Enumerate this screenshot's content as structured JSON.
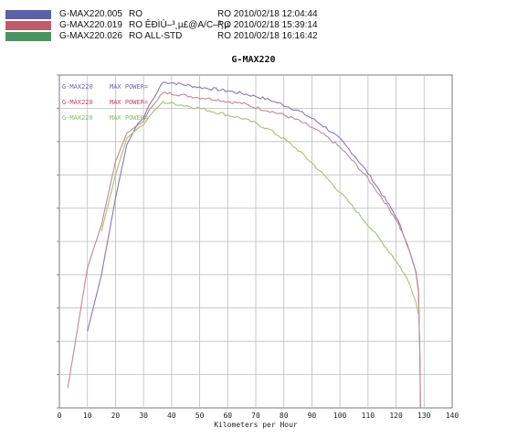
{
  "legend": [
    {
      "name": "G-MAX220.005",
      "desc": "RO",
      "date": "RO  2010/02/18 12:04:44",
      "color": "#5b60a8"
    },
    {
      "name": "G-MAX220.019",
      "desc": "RO ÊÐÌÙ–³¸µ£@A/C–³¸µ",
      "date": "RO  2010/02/18 15:39:14",
      "color": "#c05c6c"
    },
    {
      "name": "G-MAX220.026",
      "desc": "RO ALL-STD",
      "date": "RO  2010/02/18 16:16:42",
      "color": "#4d9462"
    }
  ],
  "plot_labels": [
    {
      "name": "G-MAX220",
      "power": "MAX POWER=",
      "color": "#6a6ab8"
    },
    {
      "name": "G-MAX220",
      "power": "MAX POWER=",
      "color": "#c84860"
    },
    {
      "name": "G-MAX220",
      "power": "MAX POWER=",
      "color": "#8aba70"
    }
  ],
  "chart_data": {
    "type": "line",
    "title": "G-MAX220",
    "xlabel": "Kilometers per Hour",
    "ylabel": "",
    "xlim": [
      0,
      140
    ],
    "ylim": [
      0,
      10
    ],
    "xticks": [
      0,
      10,
      20,
      30,
      40,
      50,
      60,
      70,
      80,
      90,
      100,
      110,
      120,
      130,
      140
    ],
    "yticks": [
      0,
      1,
      2,
      3,
      4,
      5,
      6,
      7,
      8,
      9,
      10
    ],
    "grid": true,
    "series": [
      {
        "name": "G-MAX220.005",
        "color": "#8a78b0",
        "x": [
          10,
          15,
          20,
          24,
          28,
          30,
          32,
          34,
          35,
          36,
          37,
          40,
          45,
          50,
          55,
          60,
          65,
          70,
          75,
          80,
          85,
          90,
          95,
          100,
          105,
          110,
          115,
          120,
          123,
          125,
          127,
          128,
          128.5,
          128.7
        ],
        "y": [
          2.3,
          4.0,
          6.3,
          7.9,
          8.55,
          8.7,
          9.1,
          9.35,
          9.5,
          9.68,
          9.78,
          9.77,
          9.7,
          9.63,
          9.58,
          9.52,
          9.45,
          9.36,
          9.25,
          9.1,
          8.93,
          8.7,
          8.42,
          8.07,
          7.6,
          7.05,
          6.42,
          5.75,
          5.15,
          4.65,
          4.1,
          3.5,
          1.5,
          0
        ]
      },
      {
        "name": "G-MAX220.019",
        "color": "#c38894",
        "x": [
          3,
          10,
          15,
          20,
          24,
          28,
          30,
          32,
          34,
          35,
          36,
          37,
          40,
          45,
          50,
          55,
          60,
          65,
          70,
          75,
          80,
          85,
          90,
          95,
          100,
          105,
          110,
          115,
          120,
          123,
          125,
          127,
          128,
          128.5,
          128.7
        ],
        "y": [
          0.6,
          4.2,
          5.5,
          7.4,
          8.25,
          8.5,
          8.6,
          8.95,
          9.15,
          9.25,
          9.4,
          9.45,
          9.45,
          9.38,
          9.32,
          9.28,
          9.2,
          9.15,
          9.02,
          8.92,
          8.8,
          8.64,
          8.42,
          8.16,
          7.83,
          7.38,
          6.88,
          6.3,
          5.67,
          5.12,
          4.64,
          4.12,
          3.55,
          1.5,
          0
        ]
      },
      {
        "name": "G-MAX220.026",
        "color": "#a4c078",
        "x": [
          15,
          20,
          24,
          28,
          30,
          32,
          34,
          35,
          36,
          37,
          40,
          45,
          50,
          55,
          60,
          65,
          70,
          75,
          80,
          85,
          90,
          95,
          100,
          105,
          110,
          115,
          120,
          123,
          125,
          127,
          128
        ],
        "y": [
          5.3,
          7.0,
          8.1,
          8.4,
          8.5,
          8.75,
          8.95,
          9.02,
          9.12,
          9.18,
          9.15,
          9.08,
          9.0,
          8.9,
          8.8,
          8.7,
          8.55,
          8.35,
          8.08,
          7.75,
          7.36,
          6.93,
          6.48,
          6.0,
          5.5,
          4.98,
          4.42,
          4.02,
          3.68,
          3.2,
          2.8
        ]
      }
    ]
  }
}
